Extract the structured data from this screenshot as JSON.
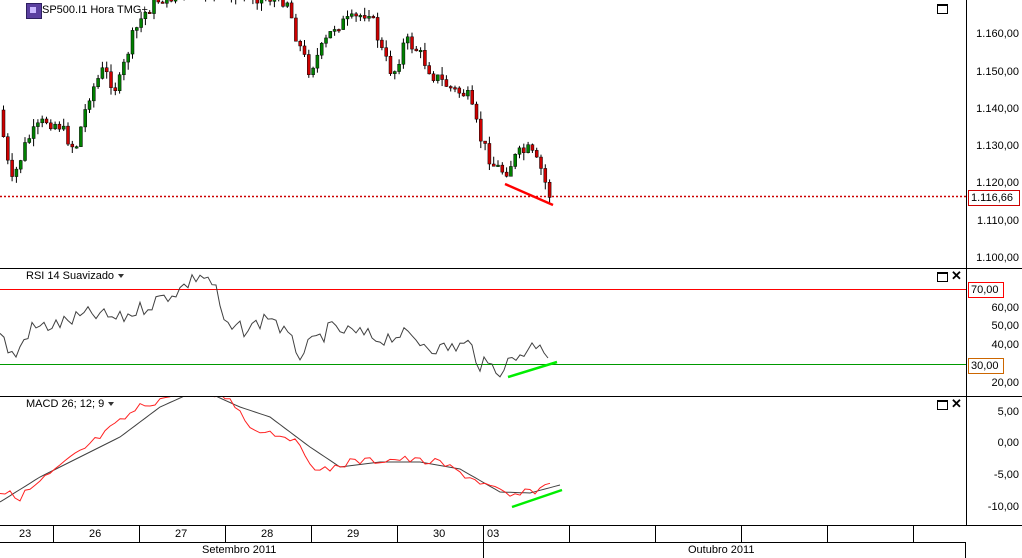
{
  "main_panel": {
    "symbol_label": "SP500.I1 Hora TMG+",
    "price_ticks": [
      "1.160,00",
      "1.150,00",
      "1.140,00",
      "1.130,00",
      "1.120,00",
      "1.110,00",
      "1.100,00"
    ],
    "current_price": "1.116,66",
    "colors": {
      "bull": "#008000",
      "bear": "#cc0000",
      "price_line": "#cc0000",
      "divergence_line": "#ff0000"
    },
    "icons": [
      "maximize-icon"
    ]
  },
  "rsi_panel": {
    "title": "RSI 14 Suavizado",
    "ticks": [
      "60,00",
      "50,00",
      "40,00",
      "20,00"
    ],
    "overbought_tag": "70,00",
    "oversold_tag": "30,00",
    "colors": {
      "line": "#404040",
      "overbought": "#ff0000",
      "oversold": "#009900",
      "divergence_line": "#00ee00"
    },
    "icons": [
      "maximize-icon",
      "close-icon"
    ]
  },
  "macd_panel": {
    "title": "MACD 26; 12; 9",
    "ticks": [
      "5,00",
      "0,00",
      "-5,00",
      "-10,00"
    ],
    "colors": {
      "macd": "#ff2020",
      "signal": "#404040",
      "divergence_line": "#00ee00"
    },
    "icons": [
      "maximize-icon",
      "close-icon"
    ]
  },
  "x_axis": {
    "day_labels": [
      "23",
      "26",
      "27",
      "28",
      "29",
      "30",
      "03"
    ],
    "month_labels": [
      "Setembro 2011",
      "Outubro 2011"
    ]
  }
}
